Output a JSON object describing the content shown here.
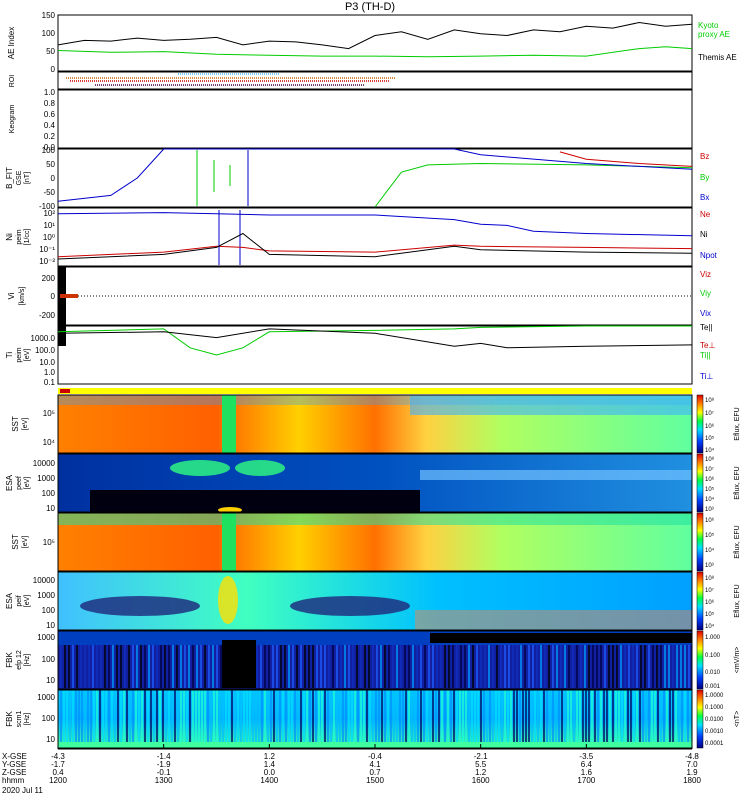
{
  "title": "P3 (TH-D)",
  "panels": {
    "ae": {
      "ylabel": "AE Index",
      "ticks": [
        "150",
        "100",
        "50",
        "0"
      ],
      "legend": [
        {
          "text": "Kyoto",
          "color": "#00cc00"
        },
        {
          "text": "proxy AE",
          "color": "#00cc00"
        },
        {
          "text": "Themis AE",
          "color": "#000000"
        }
      ]
    },
    "roi": {
      "ylabel": "ROI"
    },
    "keogram": {
      "ylabel": "Keogram",
      "ticks": [
        "1.0",
        "0.8",
        "0.6",
        "0.4",
        "0.2",
        "0.0"
      ]
    },
    "bfit": {
      "ylabel": "B_FIT",
      "ylabel2": "GSE",
      "ylabel3": "[nT]",
      "ticks": [
        "100",
        "50",
        "0",
        "-50",
        "-100"
      ],
      "legend": [
        {
          "text": "Bz",
          "color": "#cc0000"
        },
        {
          "text": "By",
          "color": "#00cc00"
        },
        {
          "text": "Bx",
          "color": "#0000cc"
        }
      ]
    },
    "density": {
      "ylabel": "Ni",
      "ylabel2": "peim",
      "ylabel3": "[1/cc]",
      "ticks": [
        "10²",
        "10¹",
        "10⁰",
        "10⁻¹",
        "10⁻²"
      ],
      "legend": [
        {
          "text": "Ne",
          "color": "#cc0000"
        },
        {
          "text": "Ni",
          "color": "#000000"
        },
        {
          "text": "Npot",
          "color": "#0000cc"
        }
      ]
    },
    "velocity": {
      "ylabel": "Vi",
      "ylabel2": "[km/s]",
      "ticks": [
        "200",
        "0",
        "-200"
      ],
      "legend": [
        {
          "text": "Viz",
          "color": "#cc0000"
        },
        {
          "text": "Viy",
          "color": "#00cc00"
        },
        {
          "text": "Vix",
          "color": "#0000cc"
        }
      ]
    },
    "temp": {
      "ylabel": "Ti",
      "ylabel2": "peim",
      "ylabel3": "[eV]",
      "ticks": [
        "1000.0",
        "100.0",
        "10.0",
        "1.0",
        "0.1"
      ],
      "legend": [
        {
          "text": "Te||",
          "color": "#000000"
        },
        {
          "text": "Te⊥",
          "color": "#cc0000"
        },
        {
          "text": "Ti||",
          "color": "#00cc00"
        },
        {
          "text": "Ti⊥",
          "color": "#0000cc"
        }
      ]
    },
    "spec1": {
      "ylabel": "SST",
      "ylabel2": "[eV]",
      "ticks": [
        "10⁵",
        "10⁴"
      ]
    },
    "spec2": {
      "ylabel": "ESA",
      "ylabel2": "peef",
      "ylabel3": "[eV]",
      "ticks": [
        "10000",
        "1000",
        "100",
        "10"
      ]
    },
    "spec3": {
      "ylabel": "SST",
      "ylabel2": "[eV]",
      "ticks": [
        "10⁵"
      ]
    },
    "spec4": {
      "ylabel": "ESA",
      "ylabel2": "peif",
      "ylabel3": "[eV]",
      "ticks": [
        "10000",
        "1000",
        "100",
        "10"
      ]
    },
    "fbk1": {
      "ylabel": "FBK",
      "ylabel2": "efp 12",
      "ylabel3": "[Hz]",
      "ticks": [
        "1000",
        "100",
        "10"
      ]
    },
    "fbk2": {
      "ylabel": "FBK",
      "ylabel2": "scm1",
      "ylabel3": "[Hz]",
      "ticks": [
        "1000",
        "100",
        "10"
      ]
    }
  },
  "colorbars": [
    {
      "label": "Eflux, EFU",
      "ticks": [
        "10⁸",
        "10⁷",
        "10⁶",
        "10⁵",
        "10⁴"
      ]
    },
    {
      "label": "Eflux, EFU",
      "ticks": [
        "10⁸",
        "10⁷",
        "10⁶",
        "10⁵",
        "10⁴",
        "10³"
      ]
    },
    {
      "label": "Eflux, EFU",
      "ticks": [
        "10⁶",
        "10⁵",
        "10⁴",
        "10³"
      ]
    },
    {
      "label": "Eflux, EFU",
      "ticks": [
        "10⁸",
        "10⁷",
        "10⁶",
        "10⁵",
        "10⁴"
      ]
    },
    {
      "label": "<mV/m>",
      "ticks": [
        "1.000",
        "0.100",
        "0.010",
        "0.001"
      ]
    },
    {
      "label": "<nT>",
      "ticks": [
        "1.0000",
        "0.1000",
        "0.0100",
        "0.0010",
        "0.0001"
      ]
    }
  ],
  "footer": {
    "row_labels": [
      "X-GSE",
      "Y-GSE",
      "Z-GSE",
      "hhmm",
      "2020 Jul 11"
    ],
    "columns": [
      [
        "-4.3",
        "-1.7",
        "0.4",
        "1200"
      ],
      [
        "-1.4",
        "-1.9",
        "-0.1",
        "1300"
      ],
      [
        "1.2",
        "1.4",
        "0.0",
        "1400"
      ],
      [
        "-0.4",
        "4.1",
        "0.7",
        "1500"
      ],
      [
        "-2.1",
        "5.5",
        "1.2",
        "1600"
      ],
      [
        "-3.5",
        "6.4",
        "1.6",
        "1700"
      ],
      [
        "-4.8",
        "7.0",
        "1.9",
        "1800"
      ]
    ]
  },
  "chart_data": {
    "type": "line",
    "title": "P3 (TH-D)",
    "x_axis": {
      "label": "hhmm",
      "ticks": [
        "1200",
        "1300",
        "1400",
        "1500",
        "1600",
        "1700",
        "1800"
      ]
    },
    "series": [
      {
        "panel": "ae",
        "name": "Themis AE",
        "color": "#000000",
        "x": [
          1200,
          1215,
          1230,
          1245,
          1300,
          1315,
          1330,
          1345,
          1400,
          1415,
          1430,
          1445,
          1500,
          1515,
          1530,
          1545,
          1600,
          1615,
          1630,
          1645,
          1700,
          1715,
          1730,
          1745,
          1800
        ],
        "y": [
          70,
          82,
          80,
          88,
          82,
          85,
          90,
          70,
          80,
          78,
          70,
          60,
          95,
          105,
          85,
          110,
          100,
          95,
          110,
          105,
          120,
          115,
          130,
          120,
          125
        ],
        "ylim": [
          0,
          150
        ]
      },
      {
        "panel": "ae",
        "name": "Kyoto proxy AE",
        "color": "#00cc00",
        "x": [
          1200,
          1230,
          1300,
          1330,
          1400,
          1430,
          1500,
          1530,
          1600,
          1630,
          1700,
          1730,
          1745,
          1800
        ],
        "y": [
          55,
          50,
          52,
          45,
          42,
          40,
          40,
          38,
          40,
          42,
          40,
          60,
          65,
          60
        ],
        "ylim": [
          0,
          150
        ]
      },
      {
        "panel": "bfit",
        "name": "Bz",
        "color": "#cc0000",
        "x": [
          1645,
          1700,
          1730,
          1800
        ],
        "y": [
          90,
          65,
          50,
          40
        ],
        "ylim": [
          -100,
          100
        ]
      },
      {
        "panel": "bfit",
        "name": "By",
        "color": "#00cc00",
        "x": [
          1500,
          1515,
          1530,
          1600,
          1700,
          1800
        ],
        "y": [
          -100,
          20,
          45,
          50,
          45,
          35
        ],
        "ylim": [
          -100,
          100
        ]
      },
      {
        "panel": "bfit",
        "name": "Bx",
        "color": "#0000cc",
        "x": [
          1200,
          1230,
          1245,
          1300,
          1545,
          1600,
          1700,
          1800
        ],
        "y": [
          -80,
          -60,
          0,
          100,
          100,
          80,
          50,
          30
        ],
        "ylim": [
          -100,
          100
        ]
      },
      {
        "panel": "density",
        "name": "Npot",
        "color": "#0000cc",
        "x": [
          1200,
          1300,
          1330,
          1400,
          1500,
          1545,
          1600,
          1615,
          1630,
          1700,
          1800
        ],
        "y": [
          2.5,
          2.6,
          2.5,
          2.4,
          2.4,
          2.0,
          1.6,
          1.5,
          1.0,
          0.8,
          0.6
        ],
        "ylim": [
          -2,
          3
        ]
      },
      {
        "panel": "density",
        "name": "Ne",
        "color": "#cc0000",
        "x": [
          1200,
          1300,
          1330,
          1345,
          1400,
          1500,
          1545,
          1600,
          1700,
          1800
        ],
        "y": [
          -1.2,
          -0.8,
          -0.3,
          -0.4,
          -0.7,
          -0.8,
          -0.2,
          -0.3,
          -0.4,
          -0.5
        ],
        "ylim": [
          -2,
          3
        ]
      },
      {
        "panel": "density",
        "name": "Ni",
        "color": "#000000",
        "x": [
          1200,
          1300,
          1330,
          1345,
          1400,
          1500,
          1545,
          1600,
          1700,
          1800
        ],
        "y": [
          -1.4,
          -1.0,
          -0.4,
          0.8,
          -1.0,
          -1.2,
          -0.3,
          -0.6,
          -0.8,
          -0.9
        ],
        "ylim": [
          -2,
          3
        ]
      },
      {
        "panel": "temp",
        "name": "Ti||",
        "color": "#00cc00",
        "x": [
          1200,
          1300,
          1315,
          1330,
          1345,
          1400,
          1500,
          1545,
          1600,
          1700,
          1800
        ],
        "y": [
          2.6,
          2.8,
          1.5,
          1.0,
          1.5,
          2.6,
          2.7,
          2.8,
          2.9,
          3.0,
          3.0
        ],
        "ylim": [
          -1,
          3
        ]
      },
      {
        "panel": "temp",
        "name": "Te||",
        "color": "#000000",
        "x": [
          1200,
          1300,
          1330,
          1400,
          1500,
          1545,
          1600,
          1615,
          1700,
          1800
        ],
        "y": [
          2.5,
          2.6,
          2.2,
          2.8,
          2.5,
          1.6,
          1.8,
          1.5,
          1.6,
          1.7
        ],
        "ylim": [
          -1,
          3
        ]
      }
    ]
  }
}
